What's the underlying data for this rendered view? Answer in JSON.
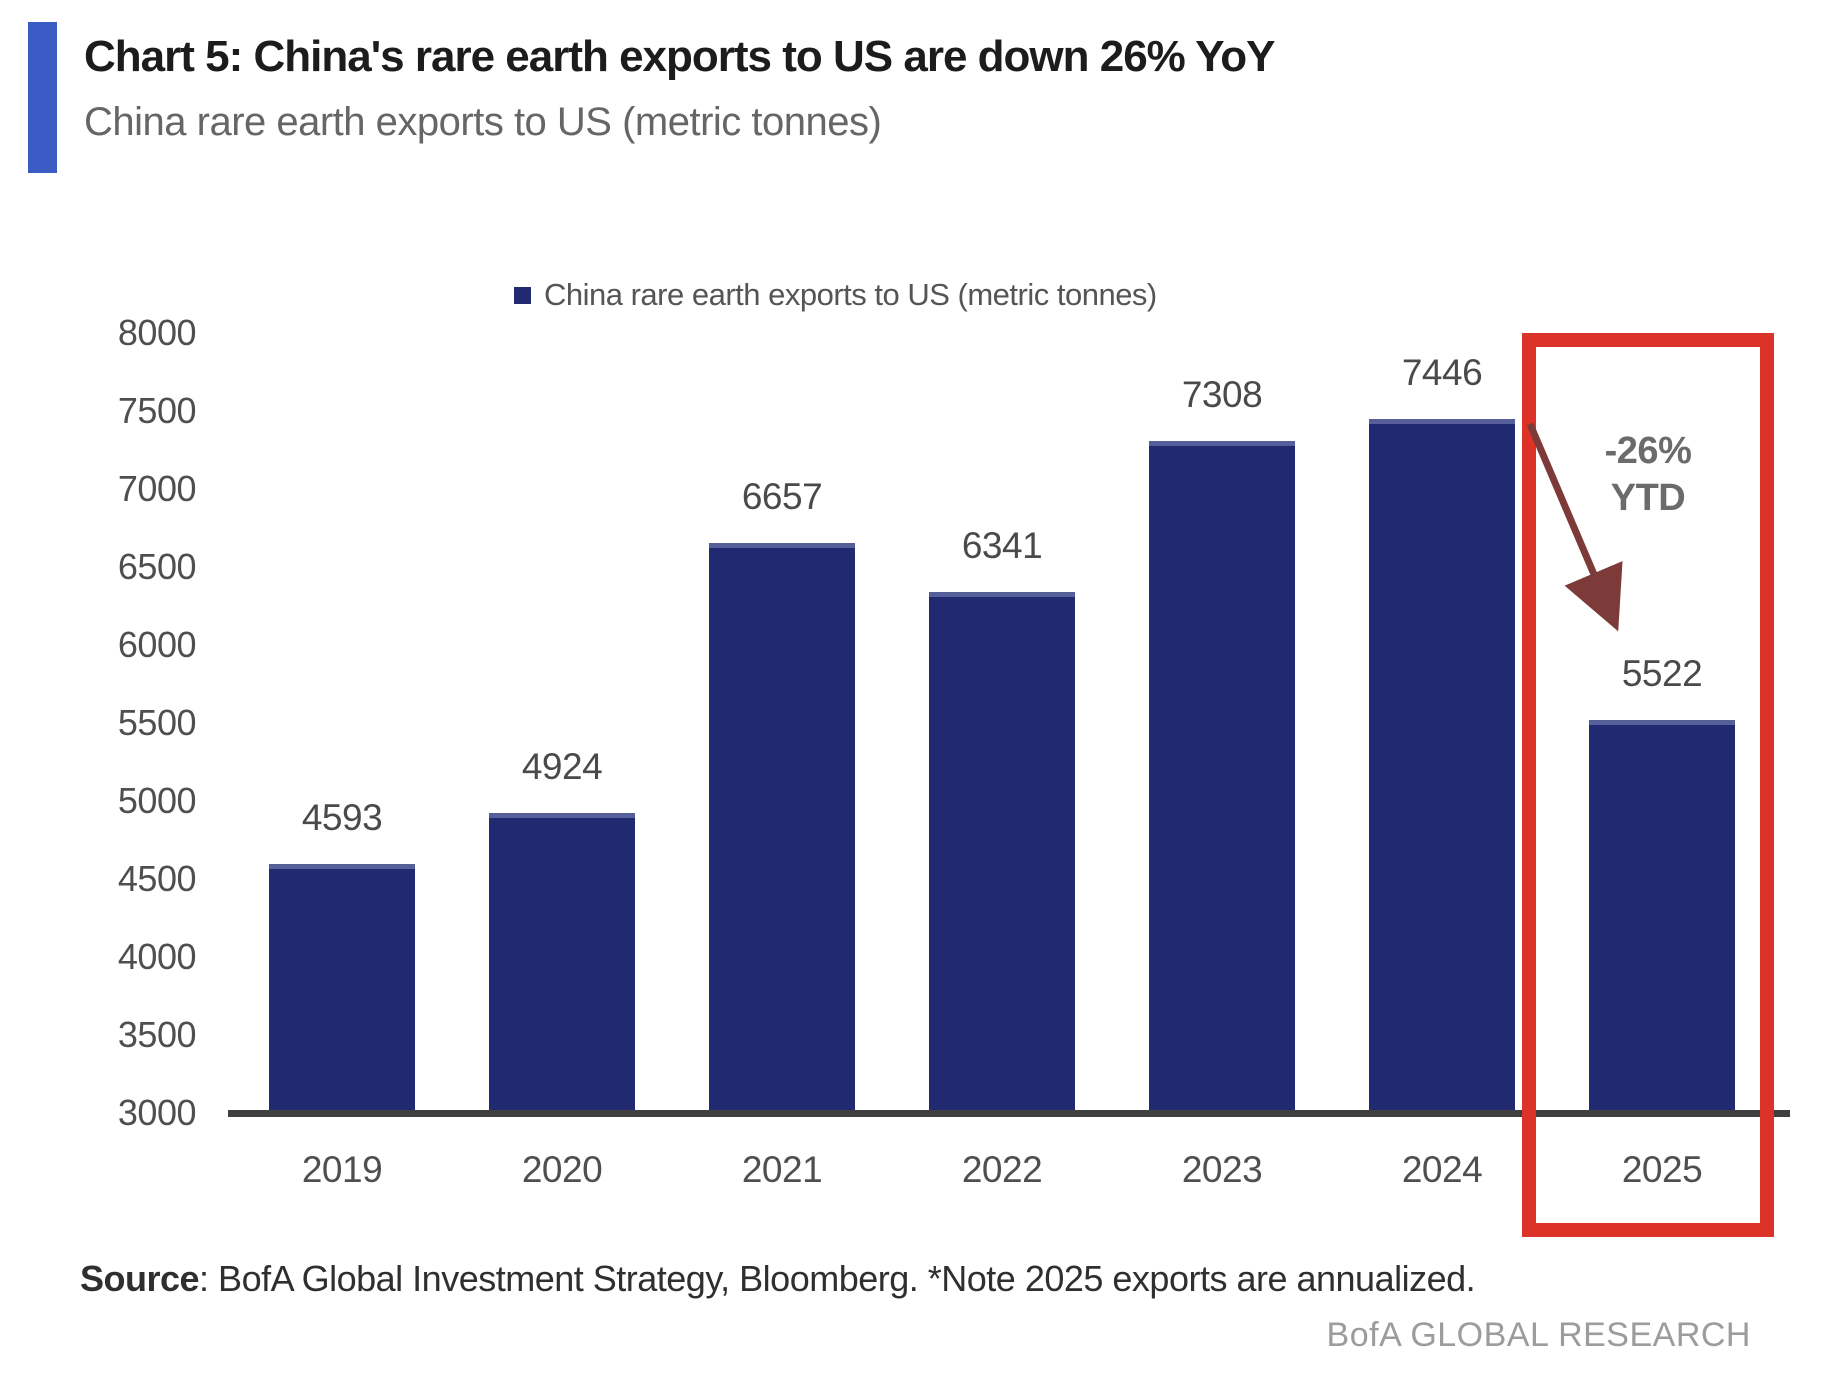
{
  "header": {
    "title": "Chart 5: China's rare earth exports to US are down 26% YoY",
    "subtitle": "China rare earth exports to US (metric tonnes)"
  },
  "chart_data": {
    "type": "bar",
    "title": "Chart 5: China's rare earth exports to US are down 26% YoY",
    "subtitle": "China rare earth exports to US (metric tonnes)",
    "legend": [
      "China rare earth exports to US (metric tonnes)"
    ],
    "legend_position": "top-center",
    "categories": [
      "2019",
      "2020",
      "2021",
      "2022",
      "2023",
      "2024",
      "2025"
    ],
    "values": [
      4593,
      4924,
      6657,
      6341,
      7308,
      7446,
      5522
    ],
    "data_labels_shown": true,
    "xlabel": "",
    "ylabel": "",
    "ylim": [
      3000,
      8000
    ],
    "ytick_step": 500,
    "yticks": [
      8000,
      7500,
      7000,
      6500,
      6000,
      5500,
      5000,
      4500,
      4000,
      3500,
      3000
    ],
    "grid": false,
    "annotation": {
      "lines": [
        "-26%",
        "YTD"
      ],
      "arrow": "down-right",
      "target_category": "2025"
    },
    "highlight": {
      "category": "2025",
      "style": "red-box"
    }
  },
  "footer": {
    "source_prefix": "Source",
    "source_text": ": BofA Global Investment Strategy, Bloomberg. *Note 2025 exports are annualized.",
    "brand": "BofA GLOBAL RESEARCH"
  },
  "colors": {
    "accent": "#3c5cc5",
    "bar": "#212a70",
    "highlight": "#dc3228",
    "arrow": "#7c3a38"
  }
}
